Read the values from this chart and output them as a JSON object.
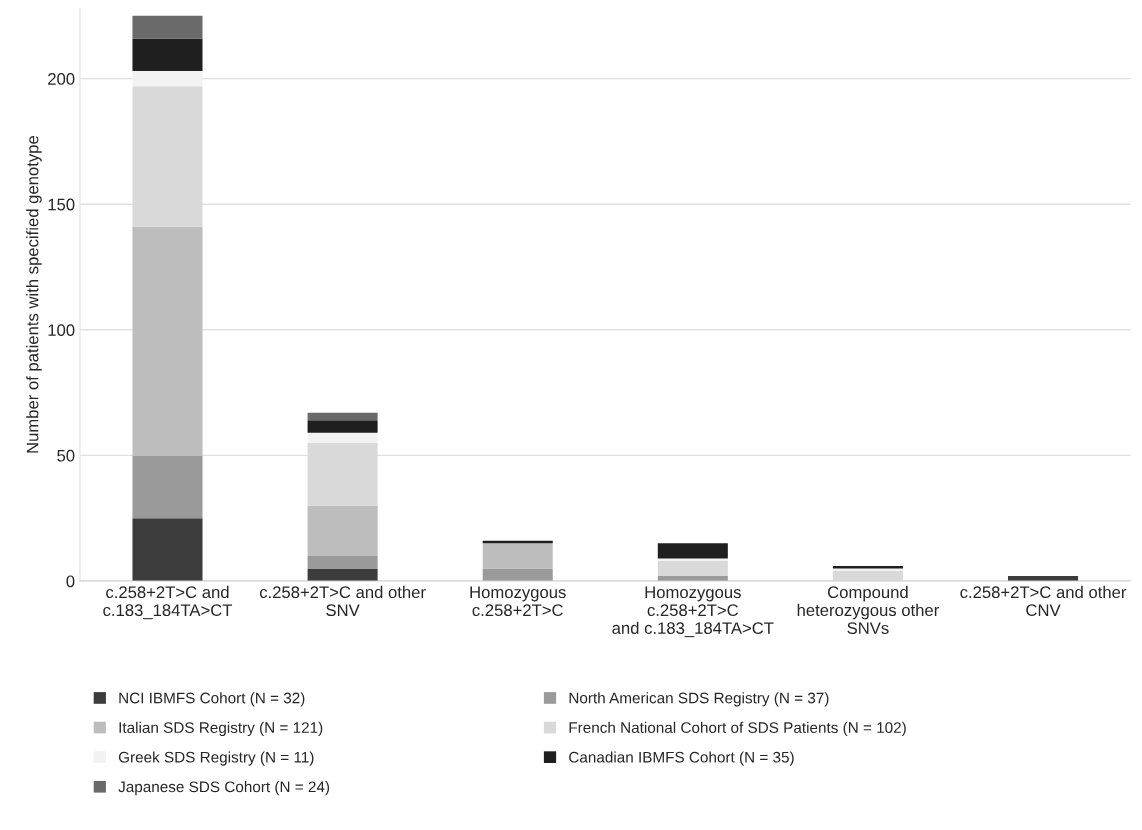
{
  "chart_data": {
    "type": "bar",
    "stacked": true,
    "ylabel": "Number of patients with specified genotype",
    "categories": [
      "c.258+2T>C and\nc.183_184TA>CT",
      "c.258+2T>C and other\nSNV",
      "Homozygous\nc.258+2T>C",
      "Homozygous\nc.258+2T>C\nand c.183_184TA>CT",
      "Compound\nheterozygous other\nSNVs",
      "c.258+2T>C and other\nCNV"
    ],
    "series": [
      {
        "name": "NCI IBMFS Cohort (N = 32)",
        "color": "#3c3c3c",
        "values": [
          25,
          5,
          0,
          0,
          0,
          2
        ]
      },
      {
        "name": "North American SDS Registry (N = 37)",
        "color": "#9a9a9a",
        "values": [
          25,
          5,
          5,
          2,
          0,
          0
        ]
      },
      {
        "name": "Italian SDS Registry (N = 121)",
        "color": "#bdbdbd",
        "values": [
          91,
          20,
          10,
          0,
          0,
          0
        ]
      },
      {
        "name": "French National Cohort of SDS Patients (N = 102)",
        "color": "#d9d9d9",
        "values": [
          56,
          25,
          0,
          6,
          4,
          0
        ]
      },
      {
        "name": "Greek SDS Registry (N = 11)",
        "color": "#f2f2f2",
        "values": [
          6,
          4,
          0,
          1,
          1,
          0
        ]
      },
      {
        "name": "Canadian IBMFS Cohort (N = 35)",
        "color": "#1f1f1f",
        "values": [
          13,
          5,
          1,
          6,
          1,
          0
        ]
      },
      {
        "name": "Japanese SDS Cohort (N = 24)",
        "color": "#6a6a6a",
        "values": [
          9,
          3,
          0,
          0,
          0,
          0
        ]
      }
    ],
    "ylim": [
      0,
      228
    ],
    "yticks": [
      0,
      50,
      100,
      150,
      200
    ],
    "grid": "y",
    "legend": "bottom"
  }
}
